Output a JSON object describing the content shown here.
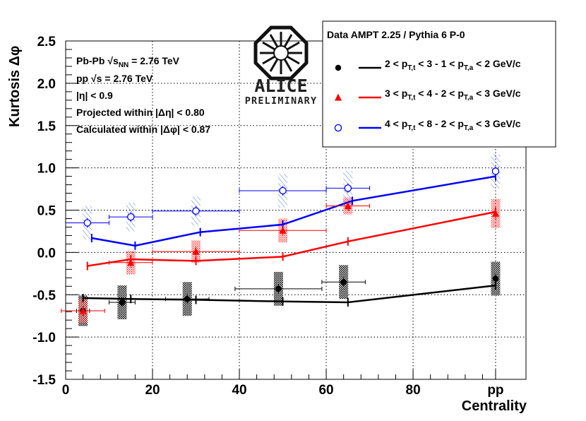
{
  "chart_data": {
    "type": "scatter",
    "xlabel": "Centrality",
    "ylabel": "Kurtosis Δφ",
    "xlim": [
      0,
      106
    ],
    "ylim": [
      -1.5,
      2.5
    ],
    "x_ticks": [
      {
        "value": 0,
        "label": "0"
      },
      {
        "value": 20,
        "label": "20"
      },
      {
        "value": 40,
        "label": "40"
      },
      {
        "value": 60,
        "label": "60"
      },
      {
        "value": 80,
        "label": "80"
      },
      {
        "value": 99,
        "label": "pp"
      }
    ],
    "y_ticks": [
      {
        "value": -1.5,
        "label": "-1.5"
      },
      {
        "value": -1.0,
        "label": "-1.0"
      },
      {
        "value": -0.5,
        "label": "-0.5"
      },
      {
        "value": 0.0,
        "label": "0.0"
      },
      {
        "value": 0.5,
        "label": "0.5"
      },
      {
        "value": 1.0,
        "label": "1.0"
      },
      {
        "value": 1.5,
        "label": "1.5"
      },
      {
        "value": 2.0,
        "label": "2.0"
      },
      {
        "value": 2.5,
        "label": "2.5"
      }
    ],
    "grid": true,
    "info_lines": [
      [
        "Pb-Pb ",
        "√s",
        "NN",
        " = 2.76 TeV"
      ],
      [
        "pp ",
        "√s",
        "",
        " = 2.76 TeV"
      ],
      [
        "|η| < 0.9",
        "",
        "",
        ""
      ],
      [
        "Projected within |Δη| < 0.80",
        "",
        "",
        ""
      ],
      [
        "Calculated within |Δφ| < 0.87",
        "",
        "",
        ""
      ]
    ],
    "logo": {
      "name": "ALICE",
      "caption": "PRELIMINARY"
    },
    "legend_header": "Data  AMPT 2.25 / Pythia 6 P-0",
    "series": [
      {
        "name": "2 < pT,t < 3 - 1 < pT,a < 2  GeV/c",
        "legend": [
          "2 < p",
          "T,t",
          " < 3 - 1 < p",
          "T,a",
          " < 2  GeV/c"
        ],
        "color": "#000000",
        "marker": "circle-filled",
        "sys_style": "dense",
        "points": [
          {
            "x": 4,
            "y": -0.69,
            "xerr": 1.5,
            "sys": 0.18
          },
          {
            "x": 13,
            "y": -0.59,
            "xerr": 3,
            "sys": 0.2
          },
          {
            "x": 28,
            "y": -0.55,
            "xerr": 5,
            "sys": 0.2
          },
          {
            "x": 49,
            "y": -0.43,
            "xerr": 10,
            "sys": 0.2
          },
          {
            "x": 64,
            "y": -0.35,
            "xerr": 5,
            "sys": 0.2
          },
          {
            "x": 99,
            "y": -0.31,
            "xerr": 0,
            "sys": 0.2
          }
        ],
        "model": [
          {
            "x": 4,
            "y": -0.54
          },
          {
            "x": 15,
            "y": -0.55
          },
          {
            "x": 30,
            "y": -0.56
          },
          {
            "x": 50,
            "y": -0.58
          },
          {
            "x": 65,
            "y": -0.59
          },
          {
            "x": 99,
            "y": -0.39
          }
        ]
      },
      {
        "name": "3 < pT,t < 4 - 2 < pT,a < 3  GeV/c",
        "legend": [
          "3 < p",
          "T,t",
          " < 4 - 2 < p",
          "T,a",
          " < 3  GeV/c"
        ],
        "color": "#ff0000",
        "marker": "triangle-filled",
        "sys_style": "dots",
        "points": [
          {
            "x": 4,
            "y": -0.69,
            "xerr": 5,
            "sys": 0.14
          },
          {
            "x": 15,
            "y": -0.12,
            "xerr": 5,
            "sys": 0.14
          },
          {
            "x": 30,
            "y": 0.01,
            "xerr": 10,
            "sys": 0.13
          },
          {
            "x": 50,
            "y": 0.26,
            "xerr": 10,
            "sys": 0.14
          },
          {
            "x": 65,
            "y": 0.55,
            "xerr": 5,
            "sys": 0.1
          },
          {
            "x": 99,
            "y": 0.46,
            "xerr": 0,
            "sys": 0.17
          }
        ],
        "model": [
          {
            "x": 5,
            "y": -0.16
          },
          {
            "x": 15,
            "y": -0.08
          },
          {
            "x": 30,
            "y": -0.1
          },
          {
            "x": 50,
            "y": -0.05
          },
          {
            "x": 65,
            "y": 0.13
          },
          {
            "x": 99,
            "y": 0.48
          }
        ]
      },
      {
        "name": "4 < pT,t < 8 - 2 < pT,a < 3  GeV/c",
        "legend": [
          "4 < p",
          "T,t",
          " < 8 - 2 < p",
          "T,a",
          " < 3  GeV/c"
        ],
        "color": "#0000ff",
        "marker": "circle-open",
        "sys_style": "hatch",
        "points": [
          {
            "x": 5,
            "y": 0.35,
            "xerr": 5,
            "sys": 0.2
          },
          {
            "x": 15,
            "y": 0.42,
            "xerr": 5,
            "sys": 0.17
          },
          {
            "x": 30,
            "y": 0.49,
            "xerr": 10,
            "sys": 0.17
          },
          {
            "x": 50,
            "y": 0.73,
            "xerr": 10,
            "sys": 0.2
          },
          {
            "x": 65,
            "y": 0.76,
            "xerr": 5,
            "sys": 0.2
          },
          {
            "x": 99,
            "y": 0.96,
            "xerr": 0,
            "sys": 0.2
          }
        ],
        "model": [
          {
            "x": 6,
            "y": 0.17
          },
          {
            "x": 16,
            "y": 0.08
          },
          {
            "x": 31,
            "y": 0.24
          },
          {
            "x": 50,
            "y": 0.33
          },
          {
            "x": 66,
            "y": 0.61
          },
          {
            "x": 99,
            "y": 0.9
          }
        ]
      }
    ]
  }
}
